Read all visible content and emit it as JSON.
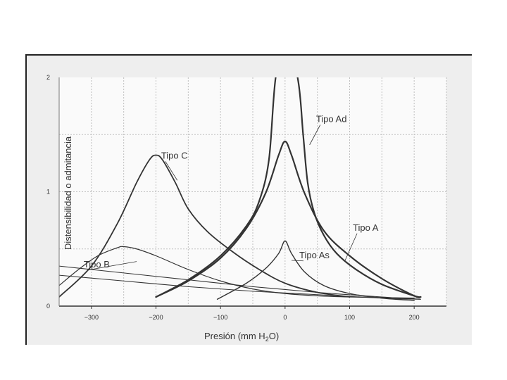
{
  "chart_data": {
    "type": "line",
    "xlabel": "Presión (mm H",
    "xlabel_sub": "2",
    "xlabel_end": "O)",
    "ylabel": "Distensibilidad o admitancia",
    "xlim": [
      -350,
      250
    ],
    "ylim": [
      0,
      2
    ],
    "x_ticks": [
      -300,
      -200,
      -100,
      0,
      100,
      200
    ],
    "x_tick_labels": [
      "−300",
      "−200",
      "−100",
      "0",
      "100",
      "200"
    ],
    "y_ticks": [
      0,
      1,
      2
    ],
    "y_tick_labels": [
      "0",
      "1",
      "2"
    ],
    "grid": true,
    "series": [
      {
        "name": "Tipo Ad",
        "x": [
          -200,
          -150,
          -100,
          -60,
          -40,
          -25,
          -15,
          0,
          20,
          28,
          35,
          45,
          60,
          80,
          110,
          150,
          200,
          210
        ],
        "y": [
          0.08,
          0.23,
          0.44,
          0.7,
          0.92,
          1.28,
          1.98,
          2.4,
          1.98,
          1.5,
          1.08,
          0.82,
          0.62,
          0.46,
          0.32,
          0.19,
          0.09,
          0.08
        ]
      },
      {
        "name": "Tipo A",
        "x": [
          -200,
          -150,
          -100,
          -60,
          -30,
          -10,
          0,
          10,
          30,
          60,
          100,
          150,
          200,
          210
        ],
        "y": [
          0.08,
          0.22,
          0.42,
          0.68,
          0.99,
          1.32,
          1.44,
          1.32,
          0.99,
          0.66,
          0.44,
          0.24,
          0.09,
          0.08
        ]
      },
      {
        "name": "Tipo As",
        "x": [
          -105,
          -60,
          -30,
          -10,
          0,
          10,
          30,
          60,
          100,
          150,
          200
        ],
        "y": [
          0.06,
          0.2,
          0.33,
          0.46,
          0.57,
          0.46,
          0.3,
          0.18,
          0.11,
          0.07,
          0.05
        ]
      },
      {
        "name": "Tipo C",
        "x": [
          -350,
          -300,
          -260,
          -230,
          -210,
          -200,
          -190,
          -170,
          -150,
          -120,
          -80,
          -40,
          0,
          50,
          100
        ],
        "y": [
          0.08,
          0.35,
          0.72,
          1.08,
          1.28,
          1.32,
          1.28,
          1.08,
          0.85,
          0.65,
          0.47,
          0.32,
          0.2,
          0.12,
          0.08
        ]
      },
      {
        "name": "Tipo B",
        "x": [
          -350,
          -320,
          -290,
          -260,
          -250,
          -230,
          -200,
          -150,
          -100,
          -50,
          0,
          50,
          100,
          200
        ],
        "y": [
          0.18,
          0.32,
          0.44,
          0.51,
          0.52,
          0.5,
          0.44,
          0.32,
          0.22,
          0.15,
          0.11,
          0.09,
          0.08,
          0.07
        ]
      },
      {
        "x": [
          -350,
          -250,
          -150,
          -50,
          50,
          150,
          210
        ],
        "y": [
          0.35,
          0.29,
          0.23,
          0.17,
          0.12,
          0.08,
          0.06
        ]
      },
      {
        "x": [
          -350,
          -250,
          -150,
          -50,
          50,
          150,
          210
        ],
        "y": [
          0.27,
          0.22,
          0.17,
          0.13,
          0.1,
          0.07,
          0.06
        ]
      }
    ],
    "annotations": [
      {
        "text": "Tipo Ad",
        "x": 48,
        "y": 1.61,
        "leader_to": [
          38,
          1.41
        ]
      },
      {
        "text": "Tipo A",
        "x": 105,
        "y": 0.66,
        "leader_to": [
          93,
          0.4
        ]
      },
      {
        "text": "Tipo As",
        "x": 22,
        "y": 0.42,
        "leader_to": [
          10,
          0.4
        ]
      },
      {
        "text": "Tipo C",
        "x": -192,
        "y": 1.29,
        "leader_to": [
          -167,
          1.1
        ]
      },
      {
        "text": "Tipo B",
        "x": -312,
        "y": 0.34,
        "leader_to": [
          -230,
          0.39
        ]
      }
    ]
  }
}
